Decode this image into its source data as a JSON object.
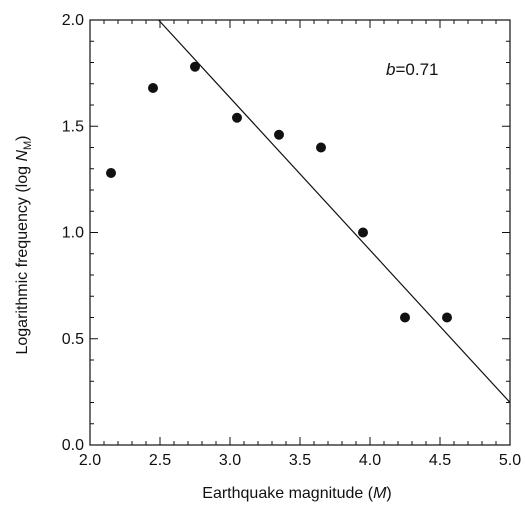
{
  "chart_data": {
    "type": "scatter",
    "xlabel": "Earthquake magnitude (",
    "xlabel_var": "M",
    "xlabel_tail": ")",
    "ylabel": "Logarithmic frequency (log ",
    "ylabel_var": "N",
    "ylabel_sub": "M",
    "ylabel_tail": ")",
    "xlim": [
      2.0,
      5.0
    ],
    "ylim": [
      0.0,
      2.0
    ],
    "x_ticks": [
      "2.0",
      "2.5",
      "3.0",
      "3.5",
      "4.0",
      "4.5",
      "5.0"
    ],
    "y_ticks": [
      "0.0",
      "0.5",
      "1.0",
      "1.5",
      "2.0"
    ],
    "grid": false,
    "annotation": {
      "var": "b",
      "text": "=0.71"
    },
    "points": [
      {
        "x": 2.15,
        "y": 1.28
      },
      {
        "x": 2.45,
        "y": 1.68
      },
      {
        "x": 2.75,
        "y": 1.78
      },
      {
        "x": 3.05,
        "y": 1.54
      },
      {
        "x": 3.35,
        "y": 1.46
      },
      {
        "x": 3.65,
        "y": 1.4
      },
      {
        "x": 3.95,
        "y": 1.0
      },
      {
        "x": 4.25,
        "y": 0.6
      },
      {
        "x": 4.55,
        "y": 0.6
      }
    ],
    "fit_line": {
      "x": [
        2.49,
        5.0
      ],
      "y": [
        2.0,
        0.2
      ]
    },
    "colors": {
      "marker": "#111111",
      "line": "#111111",
      "axis": "#111111"
    }
  }
}
